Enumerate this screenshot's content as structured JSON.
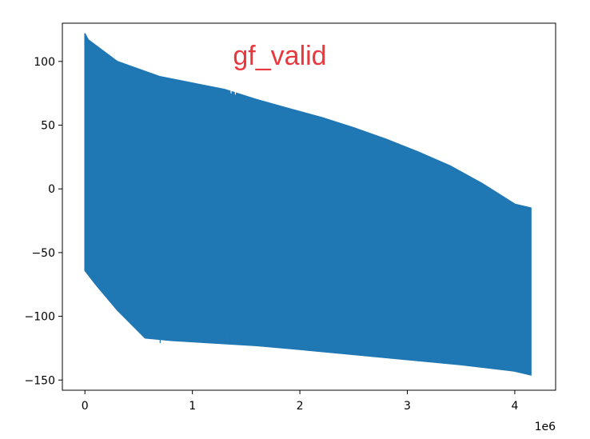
{
  "chart_data": {
    "type": "line",
    "title": "gf_valid",
    "title_color": "#e8383d",
    "xlabel": "",
    "ylabel": "",
    "x_offset_text": "1e6",
    "xlim": [
      -0.21,
      4.38
    ],
    "ylim": [
      -158,
      130
    ],
    "x_ticks": [
      0,
      1,
      2,
      3,
      4
    ],
    "x_tick_labels": [
      "0",
      "1",
      "2",
      "3",
      "4"
    ],
    "y_ticks": [
      -150,
      -100,
      -50,
      0,
      50,
      100
    ],
    "y_tick_labels": [
      "−150",
      "−100",
      "−50",
      "0",
      "50",
      "100"
    ],
    "grid": false,
    "series": [
      {
        "color": "#1f77b4",
        "upper_envelope": {
          "x": [
            0,
            0.03,
            0.3,
            0.7,
            1.0,
            1.3,
            1.6,
            1.9,
            2.2,
            2.5,
            2.8,
            3.1,
            3.4,
            3.7,
            4.0,
            4.15
          ],
          "y": [
            122,
            117,
            100,
            88,
            83,
            78,
            70,
            63,
            56,
            48,
            39,
            29,
            18,
            4,
            -12,
            -15
          ]
        },
        "lower_envelope": {
          "x": [
            0,
            0.1,
            0.3,
            0.56,
            0.8,
            1.2,
            1.6,
            2.0,
            2.5,
            3.0,
            3.5,
            4.0,
            4.15
          ],
          "y": [
            -64,
            -75,
            -95,
            -117,
            -119,
            -121,
            -123,
            -126,
            -130,
            -134,
            -138,
            -143,
            -146
          ]
        },
        "spikes": [
          {
            "x": 0.7,
            "y": -108
          },
          {
            "x": 1.3,
            "y": -110
          },
          {
            "x": 1.35,
            "y": -113
          },
          {
            "x": 1.36,
            "y": 75
          },
          {
            "x": 1.4,
            "y": 74
          }
        ]
      }
    ]
  }
}
